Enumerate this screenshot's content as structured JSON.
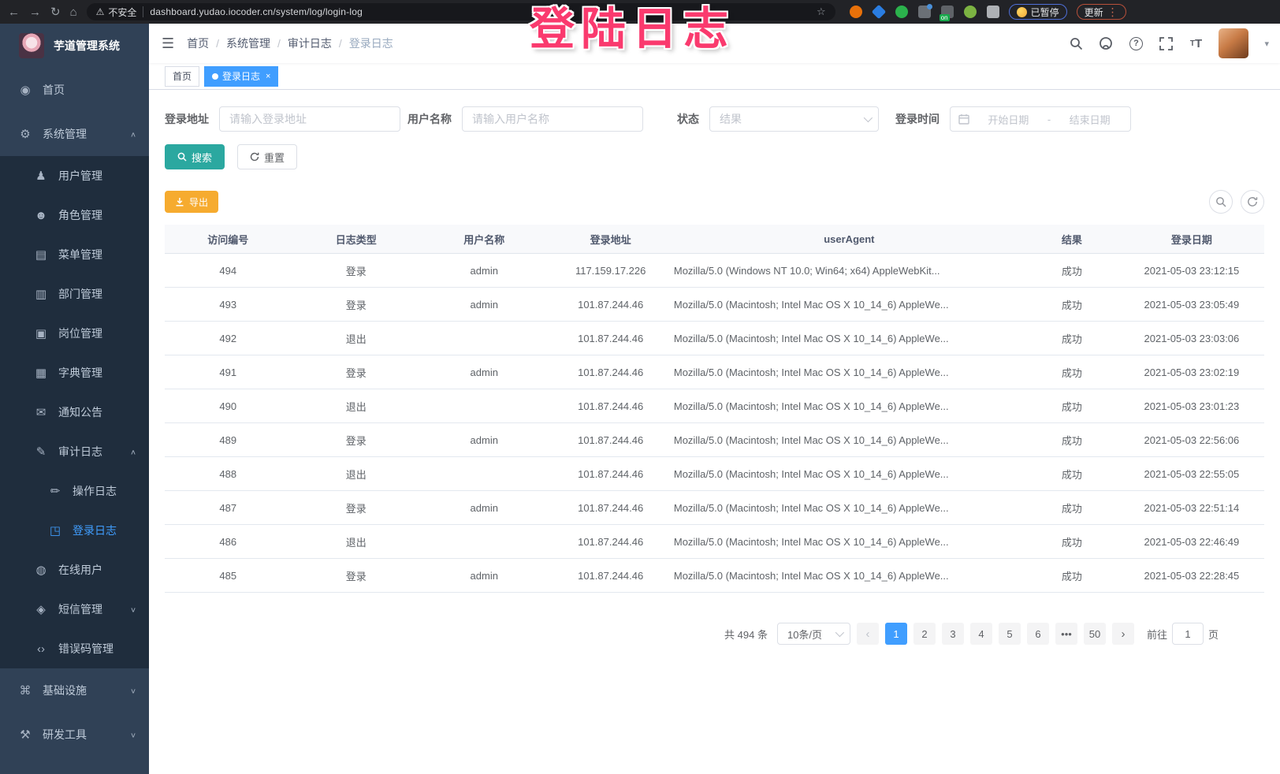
{
  "colors": {
    "accent": "#409eff",
    "search": "#2ba8a0",
    "export": "#f6ab2f",
    "watermark": "#fa3a6e",
    "sidebar": "#304156",
    "submenu": "#1f2d3d"
  },
  "browser": {
    "back_icon": "←",
    "forward_icon": "→",
    "reload_icon": "↻",
    "home_icon": "⌂",
    "warning_icon": "⚠",
    "security_warning": "不安全",
    "url": "dashboard.yudao.iocoder.cn/system/log/login-log",
    "star_icon": "☆",
    "dots_icon": "⋮",
    "paused_badge": "已暂停",
    "update_button": "更新",
    "extensions": [
      {
        "name": "extension-orange-icon",
        "shape": "circle",
        "bg": "#e8710a"
      },
      {
        "name": "extension-blue-diamond-icon",
        "shape": "diamond",
        "bg": "#2a7de1"
      },
      {
        "name": "extension-green-heart-icon",
        "shape": "circle",
        "bg": "#2bb24c"
      },
      {
        "name": "extension-grid-icon",
        "shape": "square",
        "bg": "#6b7076",
        "dot": true
      },
      {
        "name": "extension-list-on-icon",
        "shape": "square",
        "bg": "#5f6368",
        "badge": "on"
      },
      {
        "name": "extension-leaf-icon",
        "shape": "circle",
        "bg": "#7cb342"
      },
      {
        "name": "extension-puzzle-icon",
        "shape": "square",
        "bg": "#aeb1b5"
      }
    ]
  },
  "watermark_text": "登陆日志",
  "sidebar": {
    "title": "芋道管理系统",
    "menu": [
      {
        "id": "home",
        "icon": "dashboard-icon",
        "glyph": "◉",
        "label": "首页",
        "level": 1,
        "arrow": ""
      },
      {
        "id": "system-mgmt",
        "icon": "gear-icon",
        "glyph": "⚙",
        "label": "系统管理",
        "level": 1,
        "arrow": "∧"
      },
      {
        "id": "user-mgmt",
        "icon": "user-icon",
        "glyph": "♟",
        "label": "用户管理",
        "level": 2,
        "arrow": ""
      },
      {
        "id": "role-mgmt",
        "icon": "peoples-icon",
        "glyph": "☻",
        "label": "角色管理",
        "level": 2,
        "arrow": ""
      },
      {
        "id": "menu-mgmt",
        "icon": "tree-table-icon",
        "glyph": "▤",
        "label": "菜单管理",
        "level": 2,
        "arrow": ""
      },
      {
        "id": "dept-mgmt",
        "icon": "tree-icon",
        "glyph": "▥",
        "label": "部门管理",
        "level": 2,
        "arrow": ""
      },
      {
        "id": "post-mgmt",
        "icon": "post-icon",
        "glyph": "▣",
        "label": "岗位管理",
        "level": 2,
        "arrow": ""
      },
      {
        "id": "dict-mgmt",
        "icon": "dict-icon",
        "glyph": "▦",
        "label": "字典管理",
        "level": 2,
        "arrow": ""
      },
      {
        "id": "notice",
        "icon": "message-icon",
        "glyph": "✉",
        "label": "通知公告",
        "level": 2,
        "arrow": ""
      },
      {
        "id": "audit-log",
        "icon": "log-icon",
        "glyph": "✎",
        "label": "审计日志",
        "level": 2,
        "arrow": "∧"
      },
      {
        "id": "operation-log",
        "icon": "form-icon",
        "glyph": "✏",
        "label": "操作日志",
        "level": 3,
        "arrow": ""
      },
      {
        "id": "login-log",
        "icon": "logininfor-icon",
        "glyph": "◳",
        "label": "登录日志",
        "level": 3,
        "arrow": "",
        "active": true
      },
      {
        "id": "online-users",
        "icon": "online-icon",
        "glyph": "◍",
        "label": "在线用户",
        "level": 2,
        "arrow": ""
      },
      {
        "id": "sms-mgmt",
        "icon": "sms-icon",
        "glyph": "◈",
        "label": "短信管理",
        "level": 2,
        "arrow": "∨"
      },
      {
        "id": "error-code-mgmt",
        "icon": "code-icon",
        "glyph": "‹›",
        "label": "错误码管理",
        "level": 2,
        "arrow": ""
      },
      {
        "id": "infra",
        "icon": "infra-icon",
        "glyph": "⌘",
        "label": "基础设施",
        "level": 1,
        "arrow": "∨"
      },
      {
        "id": "dev-tools",
        "icon": "tool-icon",
        "glyph": "⚒",
        "label": "研发工具",
        "level": 1,
        "arrow": "∨"
      }
    ]
  },
  "header": {
    "hamburger_icon": "☰",
    "breadcrumb": [
      "首页",
      "系统管理",
      "审计日志",
      "登录日志"
    ],
    "avatar_caret_icon": "▾"
  },
  "tags": [
    {
      "label": "首页",
      "active": false
    },
    {
      "label": "登录日志",
      "active": true,
      "closable": true
    }
  ],
  "filters": {
    "login_address": {
      "label": "登录地址",
      "placeholder": "请输入登录地址"
    },
    "username": {
      "label": "用户名称",
      "placeholder": "请输入用户名称"
    },
    "status": {
      "label": "状态",
      "placeholder": "结果"
    },
    "login_time": {
      "label": "登录时间",
      "start_placeholder": "开始日期",
      "separator": "-",
      "end_placeholder": "结束日期"
    },
    "search_label": "搜索",
    "reset_label": "重置"
  },
  "toolbar": {
    "export_label": "导出"
  },
  "table": {
    "columns": [
      "访问编号",
      "日志类型",
      "用户名称",
      "登录地址",
      "userAgent",
      "结果",
      "登录日期"
    ],
    "rows": [
      [
        "494",
        "登录",
        "admin",
        "117.159.17.226",
        "Mozilla/5.0 (Windows NT 10.0; Win64; x64) AppleWebKit...",
        "成功",
        "2021-05-03 23:12:15"
      ],
      [
        "493",
        "登录",
        "admin",
        "101.87.244.46",
        "Mozilla/5.0 (Macintosh; Intel Mac OS X 10_14_6) AppleWe...",
        "成功",
        "2021-05-03 23:05:49"
      ],
      [
        "492",
        "退出",
        "",
        "101.87.244.46",
        "Mozilla/5.0 (Macintosh; Intel Mac OS X 10_14_6) AppleWe...",
        "成功",
        "2021-05-03 23:03:06"
      ],
      [
        "491",
        "登录",
        "admin",
        "101.87.244.46",
        "Mozilla/5.0 (Macintosh; Intel Mac OS X 10_14_6) AppleWe...",
        "成功",
        "2021-05-03 23:02:19"
      ],
      [
        "490",
        "退出",
        "",
        "101.87.244.46",
        "Mozilla/5.0 (Macintosh; Intel Mac OS X 10_14_6) AppleWe...",
        "成功",
        "2021-05-03 23:01:23"
      ],
      [
        "489",
        "登录",
        "admin",
        "101.87.244.46",
        "Mozilla/5.0 (Macintosh; Intel Mac OS X 10_14_6) AppleWe...",
        "成功",
        "2021-05-03 22:56:06"
      ],
      [
        "488",
        "退出",
        "",
        "101.87.244.46",
        "Mozilla/5.0 (Macintosh; Intel Mac OS X 10_14_6) AppleWe...",
        "成功",
        "2021-05-03 22:55:05"
      ],
      [
        "487",
        "登录",
        "admin",
        "101.87.244.46",
        "Mozilla/5.0 (Macintosh; Intel Mac OS X 10_14_6) AppleWe...",
        "成功",
        "2021-05-03 22:51:14"
      ],
      [
        "486",
        "退出",
        "",
        "101.87.244.46",
        "Mozilla/5.0 (Macintosh; Intel Mac OS X 10_14_6) AppleWe...",
        "成功",
        "2021-05-03 22:46:49"
      ],
      [
        "485",
        "登录",
        "admin",
        "101.87.244.46",
        "Mozilla/5.0 (Macintosh; Intel Mac OS X 10_14_6) AppleWe...",
        "成功",
        "2021-05-03 22:28:45"
      ]
    ]
  },
  "pagination": {
    "total": "共 494 条",
    "page_size": "10条/页",
    "prev_icon": "‹",
    "next_icon": "›",
    "pages": [
      {
        "t": "1",
        "active": true
      },
      {
        "t": "2"
      },
      {
        "t": "3"
      },
      {
        "t": "4"
      },
      {
        "t": "5"
      },
      {
        "t": "6"
      },
      {
        "t": "•••",
        "ellipsis": true
      },
      {
        "t": "50"
      }
    ],
    "goto": {
      "label": "前往",
      "value": "1",
      "suffix": "页"
    }
  }
}
